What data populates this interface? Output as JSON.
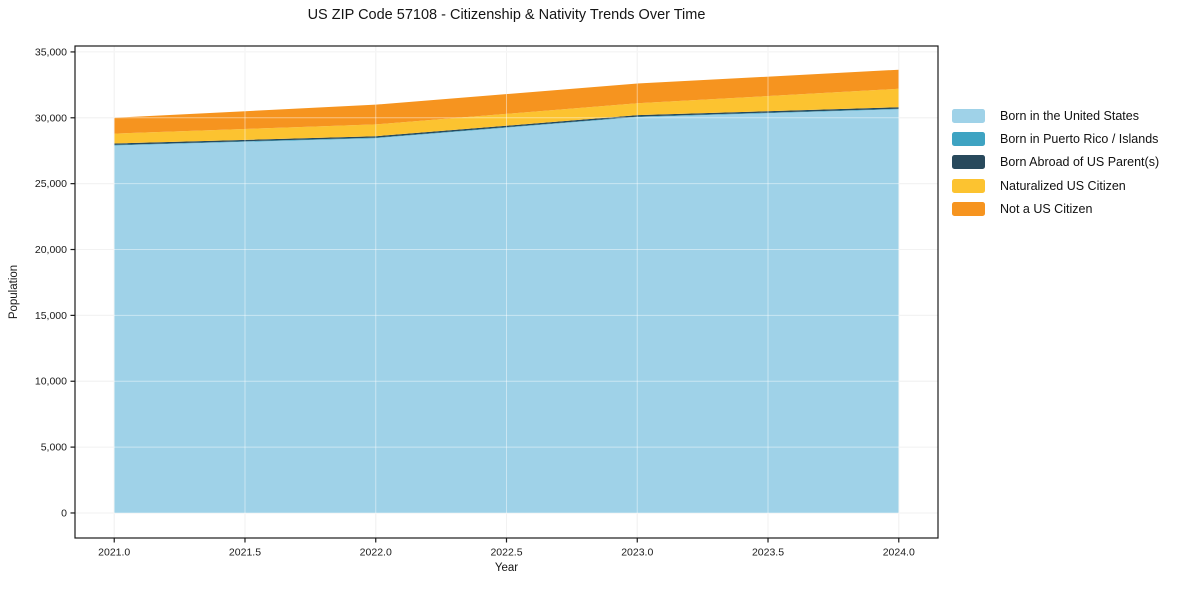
{
  "figure": {
    "title": "US ZIP Code 57108 - Citizenship & Nativity Trends Over Time",
    "xlabel": "Year",
    "ylabel": "Population"
  },
  "legend": {
    "items": [
      {
        "label": "Born in the United States",
        "color": "#9fd2e8"
      },
      {
        "label": "Born in Puerto Rico / Islands",
        "color": "#3ea3c2"
      },
      {
        "label": "Born Abroad of US Parent(s)",
        "color": "#28495c"
      },
      {
        "label": "Naturalized US Citizen",
        "color": "#fcc330"
      },
      {
        "label": "Not a US Citizen",
        "color": "#f6941f"
      }
    ]
  },
  "chart_data": {
    "type": "area",
    "stacked": true,
    "title": "US ZIP Code 57108 - Citizenship & Nativity Trends Over Time",
    "xlabel": "Year",
    "ylabel": "Population",
    "x": [
      2021,
      2022,
      2023,
      2024
    ],
    "series": [
      {
        "name": "Born in the United States",
        "color": "#9fd2e8",
        "values": [
          27900,
          28450,
          30050,
          30650
        ]
      },
      {
        "name": "Born in Puerto Rico / Islands",
        "color": "#3ea3c2",
        "values": [
          40,
          40,
          40,
          40
        ]
      },
      {
        "name": "Born Abroad of US Parent(s)",
        "color": "#28495c",
        "values": [
          110,
          110,
          110,
          110
        ]
      },
      {
        "name": "Naturalized US Citizen",
        "color": "#fcc330",
        "values": [
          750,
          900,
          900,
          1400
        ]
      },
      {
        "name": "Not a US Citizen",
        "color": "#f6941f",
        "values": [
          1200,
          1500,
          1500,
          1450
        ]
      }
    ],
    "xlim": [
      2020.85,
      2024.15
    ],
    "ylim": [
      -1900,
      35450
    ],
    "x_ticks": [
      2021.0,
      2021.5,
      2022.0,
      2022.5,
      2023.0,
      2023.5,
      2024.0
    ],
    "x_tick_labels": [
      "2021.0",
      "2021.5",
      "2022.0",
      "2022.5",
      "2023.0",
      "2023.5",
      "2024.0"
    ],
    "y_ticks": [
      0,
      5000,
      10000,
      15000,
      20000,
      25000,
      30000,
      35000
    ],
    "y_tick_labels": [
      "0",
      "5,000",
      "10,000",
      "15,000",
      "20,000",
      "25,000",
      "30,000",
      "35,000"
    ],
    "grid": true,
    "legend_position": "right"
  },
  "colors": {
    "background": "#ffffff",
    "grid": "#e8e8e8",
    "grid_over_area": "rgba(255,255,255,0.45)",
    "spine": "#1a1a1a",
    "text": "#1a1a1a"
  }
}
